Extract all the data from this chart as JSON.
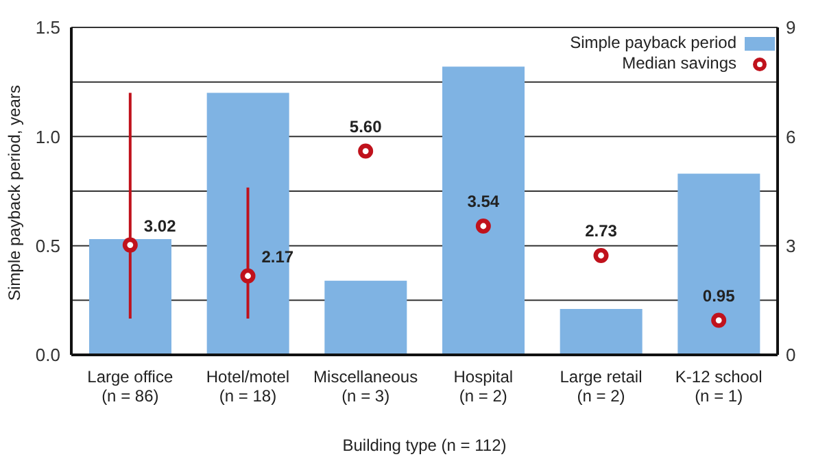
{
  "chart_data": {
    "type": "bar",
    "xlabel": "Building type (n = 112)",
    "ylabel": "Simple payback period, years",
    "categories": [
      "Large office\n(n = 86)",
      "Hotel/motel\n(n = 18)",
      "Miscellaneous\n(n = 3)",
      "Hospital\n(n = 2)",
      "Large retail\n(n = 2)",
      "K-12 school\n(n = 1)"
    ],
    "series": [
      {
        "name": "Simple payback period",
        "color": "#7fb3e3",
        "values": [
          0.53,
          1.2,
          0.34,
          1.32,
          0.21,
          0.83
        ]
      },
      {
        "name": "Median savings",
        "type": "scatter",
        "axis": "y2",
        "color": "#c0121c",
        "marker": "circle",
        "values": [
          3.02,
          2.17,
          5.6,
          3.54,
          2.73,
          0.95
        ],
        "value_labels": [
          "3.02",
          "2.17",
          "5.60",
          "3.54",
          "2.73",
          "0.95"
        ],
        "errors": [
          [
            1.0,
            7.2
          ],
          [
            1.0,
            4.6
          ],
          null,
          null,
          null,
          null
        ]
      }
    ],
    "ylim": [
      0,
      1.5
    ],
    "yticks": [
      {
        "value": 0,
        "label": "0.0"
      },
      {
        "value": 0.25,
        "label": null
      },
      {
        "value": 0.5,
        "label": "0.5"
      },
      {
        "value": 0.75,
        "label": null
      },
      {
        "value": 1,
        "label": "1.0"
      },
      {
        "value": 1.25,
        "label": null
      },
      {
        "value": 1.5,
        "label": "1.5"
      }
    ],
    "y2lim": [
      0,
      9
    ],
    "y2ticks": [
      0,
      {
        "value": 1.5,
        "label": null
      },
      3,
      {
        "value": 4.5,
        "label": null
      },
      6,
      {
        "value": 7.5,
        "label": null
      },
      9
    ],
    "grid": "y",
    "legend": "top right"
  }
}
